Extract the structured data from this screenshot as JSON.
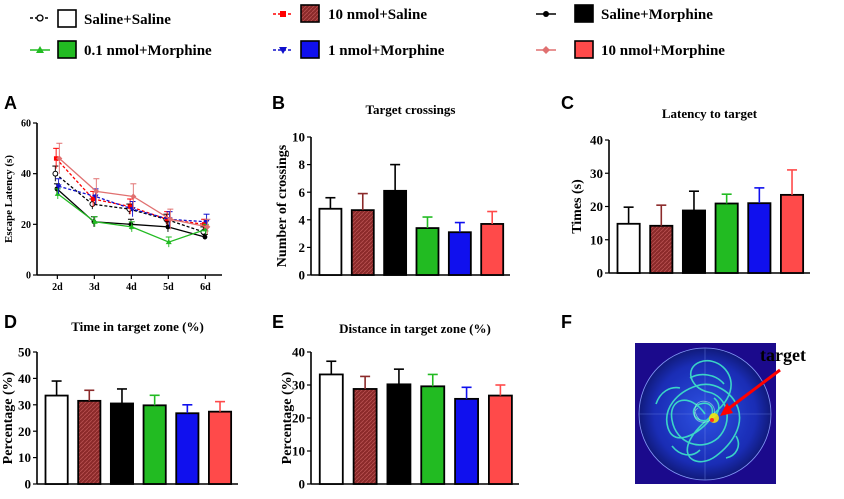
{
  "groups": [
    {
      "label": "Saline+Saline",
      "color": "#ffffff",
      "line": "#000000",
      "dash": true
    },
    {
      "label": "10 nmol+Saline",
      "color": "#8b2a2a",
      "line": "#ff0000",
      "dash": true
    },
    {
      "label": "Saline+Morphine",
      "color": "#000000",
      "line": "#000000",
      "dash": false
    },
    {
      "label": "0.1 nmol+Morphine",
      "color": "#22bb22",
      "line": "#22bb22",
      "dash": false
    },
    {
      "label": "1 nmol+Morphine",
      "color": "#1010ee",
      "line": "#1010cc",
      "dash": true
    },
    {
      "label": "10 nmol+Morphine",
      "color": "#ff4a4a",
      "line": "#e07070",
      "dash": false
    }
  ],
  "panels": {
    "A": {
      "letter": "A"
    },
    "B": {
      "letter": "B"
    },
    "C": {
      "letter": "C"
    },
    "D": {
      "letter": "D"
    },
    "E": {
      "letter": "E"
    },
    "F": {
      "letter": "F",
      "target_label": "target"
    }
  },
  "chart_data": [
    {
      "id": "A",
      "type": "line",
      "title": "",
      "xlabel": "",
      "ylabel": "Escape Latency (s)",
      "categories": [
        "2d",
        "3d",
        "4d",
        "5d",
        "6d"
      ],
      "ylim": [
        0,
        60
      ],
      "yticks": [
        0,
        20,
        40,
        60
      ],
      "series": [
        {
          "name": "Saline+Saline",
          "values": [
            40,
            28,
            26,
            22,
            17
          ],
          "errors": [
            3,
            2,
            2,
            2,
            2
          ]
        },
        {
          "name": "10 nmol+Saline",
          "values": [
            46,
            30,
            27,
            22,
            20
          ],
          "errors": [
            4,
            3,
            3,
            3,
            2
          ]
        },
        {
          "name": "Saline+Morphine",
          "values": [
            34,
            21,
            20,
            19,
            15
          ],
          "errors": [
            2,
            2,
            2,
            2,
            1
          ]
        },
        {
          "name": "0.1 nmol+Morphine",
          "values": [
            32,
            21,
            19,
            13,
            18
          ],
          "errors": [
            2,
            2,
            2,
            2,
            2
          ]
        },
        {
          "name": "1 nmol+Morphine",
          "values": [
            35,
            31,
            26,
            22,
            21
          ],
          "errors": [
            3,
            3,
            3,
            3,
            3
          ]
        },
        {
          "name": "10 nmol+Morphine",
          "values": [
            46,
            33,
            31,
            22,
            19
          ],
          "errors": [
            6,
            5,
            5,
            4,
            3
          ]
        }
      ]
    },
    {
      "id": "B",
      "type": "bar",
      "title": "Target crossings",
      "xlabel": "",
      "ylabel": "Number of crossings",
      "categories": [
        "Saline+Saline",
        "10 nmol+Saline",
        "Saline+Morphine",
        "0.1 nmol+Morphine",
        "1 nmol+Morphine",
        "10 nmol+Morphine"
      ],
      "values": [
        4.8,
        4.7,
        6.1,
        3.4,
        3.1,
        3.7
      ],
      "errors": [
        0.8,
        1.2,
        1.9,
        0.8,
        0.7,
        0.9
      ],
      "ylim": [
        0,
        10
      ],
      "yticks": [
        0,
        2,
        4,
        6,
        8,
        10
      ]
    },
    {
      "id": "C",
      "type": "bar",
      "title": "Latency to target",
      "xlabel": "",
      "ylabel": "Times (s)",
      "categories": [
        "Saline+Saline",
        "10 nmol+Saline",
        "Saline+Morphine",
        "0.1 nmol+Morphine",
        "1 nmol+Morphine",
        "10 nmol+Morphine"
      ],
      "values": [
        14.8,
        14.2,
        18.8,
        20.9,
        21,
        23.5
      ],
      "errors": [
        5,
        6.2,
        5.8,
        2.8,
        4.6,
        7.5
      ],
      "ylim": [
        0,
        40
      ],
      "yticks": [
        0,
        10,
        20,
        30,
        40
      ]
    },
    {
      "id": "D",
      "type": "bar",
      "title": "Time in target zone (%)",
      "xlabel": "",
      "ylabel": "Percentage (%)",
      "categories": [
        "Saline+Saline",
        "10 nmol+Saline",
        "Saline+Morphine",
        "0.1 nmol+Morphine",
        "1 nmol+Morphine",
        "10 nmol+Morphine"
      ],
      "values": [
        33.5,
        31.5,
        30.5,
        29.8,
        26.8,
        27.4
      ],
      "errors": [
        5.5,
        4,
        5.5,
        3.8,
        3.2,
        3.8
      ],
      "ylim": [
        0,
        50
      ],
      "yticks": [
        0,
        10,
        20,
        30,
        40,
        50
      ]
    },
    {
      "id": "E",
      "type": "bar",
      "title": "Distance in target zone (%)",
      "xlabel": "",
      "ylabel": "Percentage (%)",
      "categories": [
        "Saline+Saline",
        "10 nmol+Saline",
        "Saline+Morphine",
        "0.1 nmol+Morphine",
        "1 nmol+Morphine",
        "10 nmol+Morphine"
      ],
      "values": [
        33.2,
        28.8,
        30.2,
        29.6,
        25.8,
        26.8
      ],
      "errors": [
        4,
        3.8,
        4.6,
        3.6,
        3.5,
        3.2
      ],
      "ylim": [
        0,
        40
      ],
      "yticks": [
        0,
        10,
        20,
        30,
        40
      ]
    }
  ]
}
